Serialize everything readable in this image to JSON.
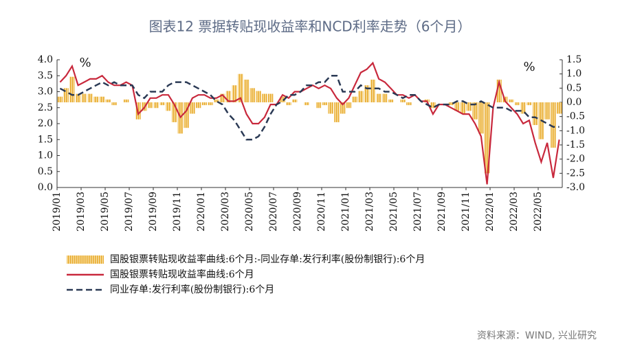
{
  "chart_data": {
    "type": "combo",
    "title": "图表12 票据转贴现收益率和NCD利率走势（6个月）",
    "y_unit": "%",
    "y2_unit": "%",
    "source": "资料来源：WIND, 兴业研究",
    "categories": [
      "2019/01",
      null,
      null,
      null,
      "2019/03",
      null,
      null,
      null,
      "2019/05",
      null,
      null,
      null,
      "2019/07",
      null,
      null,
      null,
      "2019/09",
      null,
      null,
      null,
      "2019/11",
      null,
      null,
      null,
      "2020/01",
      null,
      null,
      null,
      "2020/03",
      null,
      null,
      null,
      "2020/05",
      null,
      null,
      null,
      "2020/07",
      null,
      null,
      null,
      "2020/09",
      null,
      null,
      null,
      "2020/11",
      null,
      null,
      null,
      "2021/01",
      null,
      null,
      null,
      "2021/03",
      null,
      null,
      null,
      "2021/05",
      null,
      null,
      null,
      "2021/07",
      null,
      null,
      null,
      "2021/09",
      null,
      null,
      null,
      "2021/11",
      null,
      null,
      null,
      "2022/01",
      null,
      null,
      null,
      "2022/03",
      null,
      null,
      null,
      "2022/05",
      null,
      null,
      null
    ],
    "ylim": [
      0,
      4
    ],
    "yticks": [
      {
        "value": 0,
        "label": "0.0"
      },
      0.5,
      {
        "value": 1,
        "label": "1.0"
      },
      1.5,
      {
        "value": 2,
        "label": "2.0"
      },
      2.5,
      {
        "value": 3,
        "label": "3.0"
      },
      3.5,
      {
        "value": 4,
        "label": "4.0"
      }
    ],
    "y2lim": [
      -3,
      1.5
    ],
    "y2ticks": [
      {
        "value": -3,
        "label": "-3.0"
      },
      -2.5,
      {
        "value": -2,
        "label": "-2.0"
      },
      -1.5,
      {
        "value": -1,
        "label": "-1.0"
      },
      -0.5,
      {
        "value": 0,
        "label": "0.0"
      },
      0.5,
      {
        "value": 1,
        "label": "1.0"
      },
      1.5
    ],
    "series": [
      {
        "name": "国股银票转贴现收益率曲线:6个月:-同业存单:发行利率(股份制银行):6个月",
        "type": "bar",
        "axis": "y2",
        "color": "#efbd4e",
        "values": [
          0.2,
          0.5,
          0.9,
          0.3,
          0.3,
          0.3,
          0.2,
          0.2,
          0.1,
          -0.1,
          0,
          0.1,
          0,
          -0.6,
          -0.3,
          -0.2,
          -0.2,
          -0.1,
          -0.3,
          -0.7,
          -1.1,
          -0.9,
          -0.4,
          -0.2,
          -0.1,
          -0.1,
          0.1,
          0.3,
          0.4,
          0.6,
          1.0,
          0.8,
          0.5,
          0.4,
          0.3,
          0.3,
          0,
          0.2,
          -0.1,
          0.1,
          0,
          -0.1,
          0,
          -0.2,
          -0.1,
          -0.4,
          -0.7,
          -0.4,
          -0.2,
          0.2,
          0.4,
          0.6,
          0.8,
          0.3,
          0.3,
          0.1,
          0,
          0.1,
          -0.1,
          0,
          0,
          0.1,
          -0.2,
          0,
          0,
          -0.1,
          -0.3,
          -0.4,
          -0.3,
          -0.6,
          -1.1,
          -2.5,
          0,
          0.8,
          0.2,
          0.1,
          -0.1,
          -0.4,
          -0.1,
          -0.8,
          -1.3,
          -0.6,
          -1.6,
          -0.4
        ]
      },
      {
        "name": "国股银票转贴现收益率曲线:6个月",
        "type": "line",
        "color": "#c8283c",
        "values": [
          3.3,
          3.5,
          3.8,
          3.2,
          3.3,
          3.4,
          3.4,
          3.5,
          3.3,
          3.2,
          3.2,
          3.3,
          3.2,
          2.3,
          2.5,
          2.8,
          2.8,
          2.9,
          2.9,
          2.6,
          2.2,
          2.4,
          2.8,
          2.9,
          2.9,
          2.8,
          2.8,
          2.9,
          2.7,
          2.7,
          2.8,
          2.3,
          2.0,
          2.0,
          2.2,
          2.6,
          2.6,
          2.9,
          2.8,
          3.0,
          3.0,
          3.1,
          3.2,
          3.1,
          3.2,
          3.1,
          2.8,
          2.6,
          2.8,
          3.2,
          3.6,
          3.7,
          3.9,
          3.4,
          3.3,
          3.1,
          2.9,
          2.9,
          2.8,
          2.9,
          2.7,
          2.7,
          2.3,
          2.6,
          2.6,
          2.5,
          2.4,
          2.3,
          2.3,
          2.0,
          1.6,
          0.1,
          2.5,
          3.3,
          2.7,
          2.5,
          2.3,
          2.0,
          2.1,
          1.4,
          0.8,
          1.4,
          0.3,
          1.5
        ]
      },
      {
        "name": "同业存单:发行利率(股份制银行):6个月",
        "type": "dashed",
        "color": "#2b3a55",
        "values": [
          3.1,
          3.0,
          2.9,
          2.9,
          3.0,
          3.1,
          3.2,
          3.3,
          3.2,
          3.3,
          3.2,
          3.2,
          3.2,
          2.9,
          2.8,
          3.0,
          3.0,
          3.0,
          3.2,
          3.3,
          3.3,
          3.3,
          3.2,
          3.1,
          3.0,
          2.9,
          2.7,
          2.6,
          2.3,
          2.1,
          1.8,
          1.5,
          1.5,
          1.6,
          1.9,
          2.3,
          2.6,
          2.7,
          2.9,
          2.9,
          3.0,
          3.2,
          3.2,
          3.3,
          3.3,
          3.5,
          3.5,
          3.0,
          3.0,
          3.0,
          3.2,
          3.1,
          3.1,
          3.1,
          3.0,
          3.0,
          2.9,
          2.8,
          2.9,
          2.9,
          2.7,
          2.6,
          2.5,
          2.6,
          2.6,
          2.6,
          2.7,
          2.7,
          2.6,
          2.6,
          2.7,
          2.6,
          2.5,
          2.5,
          2.5,
          2.4,
          2.4,
          2.4,
          2.2,
          2.2,
          2.1,
          2.0,
          1.9,
          1.9
        ]
      }
    ]
  }
}
